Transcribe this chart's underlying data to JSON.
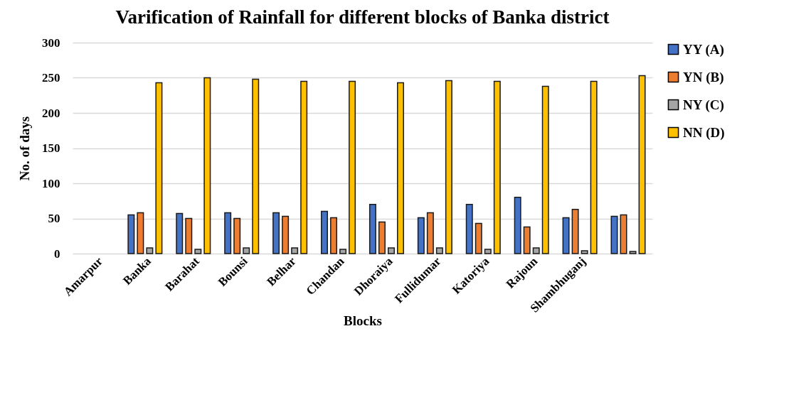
{
  "chart_data": {
    "type": "bar",
    "title": "Varification of Rainfall for different blocks of Banka district",
    "xlabel": "Blocks",
    "ylabel": "No. of days",
    "categories": [
      "Amarpur",
      "Banka",
      "Barahat",
      "Bounsi",
      "Belhar",
      "Chandan",
      "Dhoraiya",
      "Fullidumar",
      "Katoriya",
      "Rajoun",
      "Shambhuganj",
      null
    ],
    "series": [
      {
        "name": "YY (A)",
        "color": "#4472c4",
        "values": [
          null,
          55,
          57,
          58,
          58,
          60,
          70,
          51,
          70,
          80,
          51,
          53
        ]
      },
      {
        "name": "YN (B)",
        "color": "#ed7d31",
        "values": [
          null,
          58,
          50,
          50,
          53,
          51,
          45,
          58,
          43,
          38,
          63,
          55
        ]
      },
      {
        "name": "NY (C)",
        "color": "#a5a5a5",
        "values": [
          null,
          8,
          6,
          8,
          8,
          6,
          8,
          8,
          6,
          8,
          4,
          3
        ]
      },
      {
        "name": "NN (D)",
        "color": "#ffc000",
        "values": [
          null,
          243,
          250,
          248,
          245,
          245,
          243,
          246,
          245,
          238,
          245,
          253
        ]
      }
    ],
    "ylim": [
      0,
      300
    ],
    "yticks": [
      0,
      50,
      100,
      150,
      200,
      250,
      300
    ],
    "grid": "y",
    "legend": "right"
  }
}
